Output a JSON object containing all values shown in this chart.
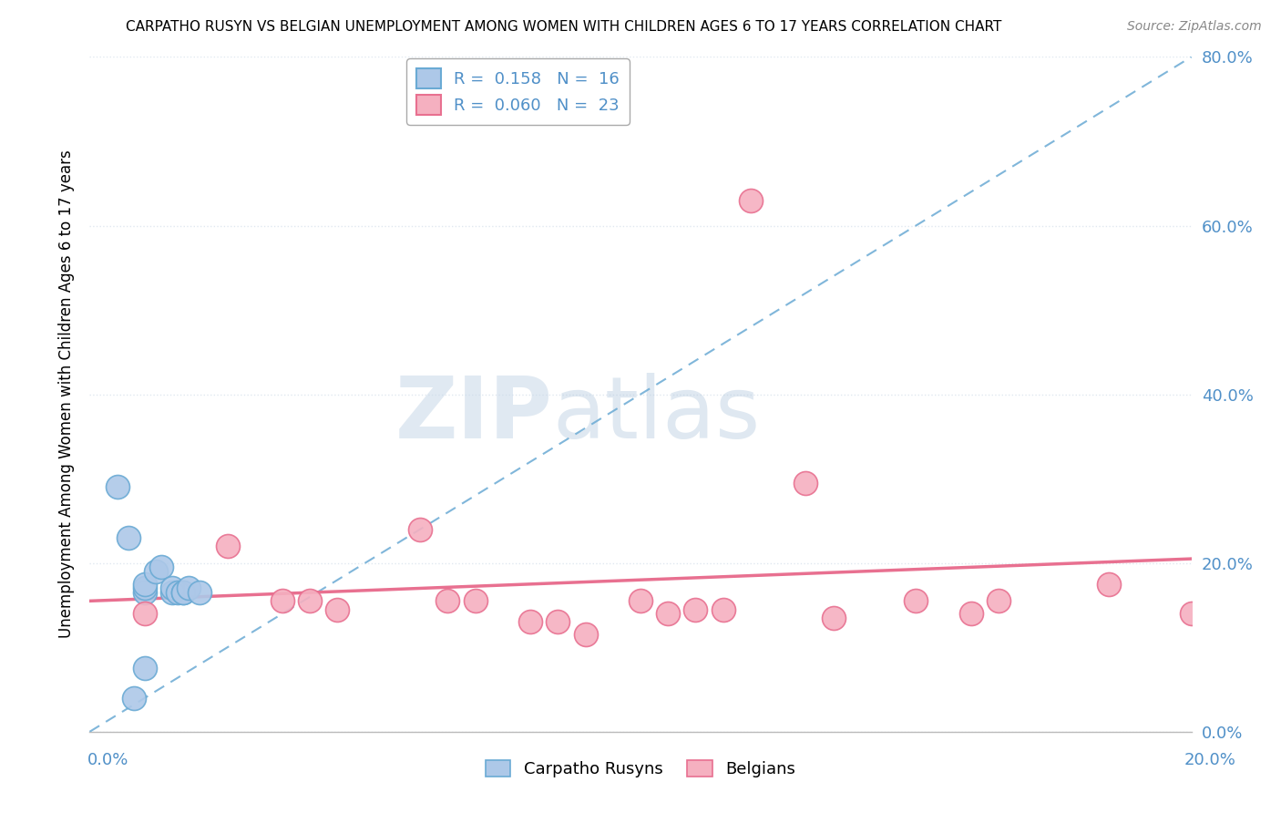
{
  "title": "CARPATHO RUSYN VS BELGIAN UNEMPLOYMENT AMONG WOMEN WITH CHILDREN AGES 6 TO 17 YEARS CORRELATION CHART",
  "source": "Source: ZipAtlas.com",
  "ylabel": "Unemployment Among Women with Children Ages 6 to 17 years",
  "xlim": [
    0.0,
    0.2
  ],
  "ylim": [
    0.0,
    0.8
  ],
  "yticks": [
    0.0,
    0.2,
    0.4,
    0.6,
    0.8
  ],
  "ytick_labels": [
    "0.0%",
    "20.0%",
    "40.0%",
    "60.0%",
    "80.0%"
  ],
  "xtick_left": "0.0%",
  "xtick_right": "20.0%",
  "carpatho_R": "0.158",
  "carpatho_N": "16",
  "belgian_R": "0.060",
  "belgian_N": "23",
  "carpatho_color": "#adc8e8",
  "belgian_color": "#f5b0c0",
  "carpatho_edge_color": "#6aaad4",
  "belgian_edge_color": "#e87090",
  "carpatho_line_color": "#6aaad4",
  "belgian_line_color": "#e87090",
  "grid_color": "#e0e8f0",
  "watermark_zip": "ZIP",
  "watermark_atlas": "atlas",
  "carpatho_x": [
    0.005,
    0.007,
    0.008,
    0.01,
    0.01,
    0.01,
    0.012,
    0.013,
    0.015,
    0.015,
    0.016,
    0.017,
    0.017,
    0.018,
    0.02,
    0.01
  ],
  "carpatho_y": [
    0.29,
    0.23,
    0.04,
    0.165,
    0.17,
    0.175,
    0.19,
    0.195,
    0.165,
    0.17,
    0.165,
    0.165,
    0.165,
    0.17,
    0.165,
    0.075
  ],
  "belgian_x": [
    0.01,
    0.025,
    0.035,
    0.04,
    0.045,
    0.06,
    0.065,
    0.07,
    0.08,
    0.085,
    0.09,
    0.1,
    0.105,
    0.11,
    0.115,
    0.12,
    0.13,
    0.135,
    0.15,
    0.16,
    0.165,
    0.185,
    0.2
  ],
  "belgian_y": [
    0.14,
    0.22,
    0.155,
    0.155,
    0.145,
    0.24,
    0.155,
    0.155,
    0.13,
    0.13,
    0.115,
    0.155,
    0.14,
    0.145,
    0.145,
    0.63,
    0.295,
    0.135,
    0.155,
    0.14,
    0.155,
    0.175,
    0.14
  ],
  "blue_trendline_x0": 0.0,
  "blue_trendline_y0": 0.0,
  "blue_trendline_x1": 0.2,
  "blue_trendline_y1": 0.8,
  "pink_trendline_x0": 0.0,
  "pink_trendline_y0": 0.155,
  "pink_trendline_x1": 0.2,
  "pink_trendline_y1": 0.205
}
